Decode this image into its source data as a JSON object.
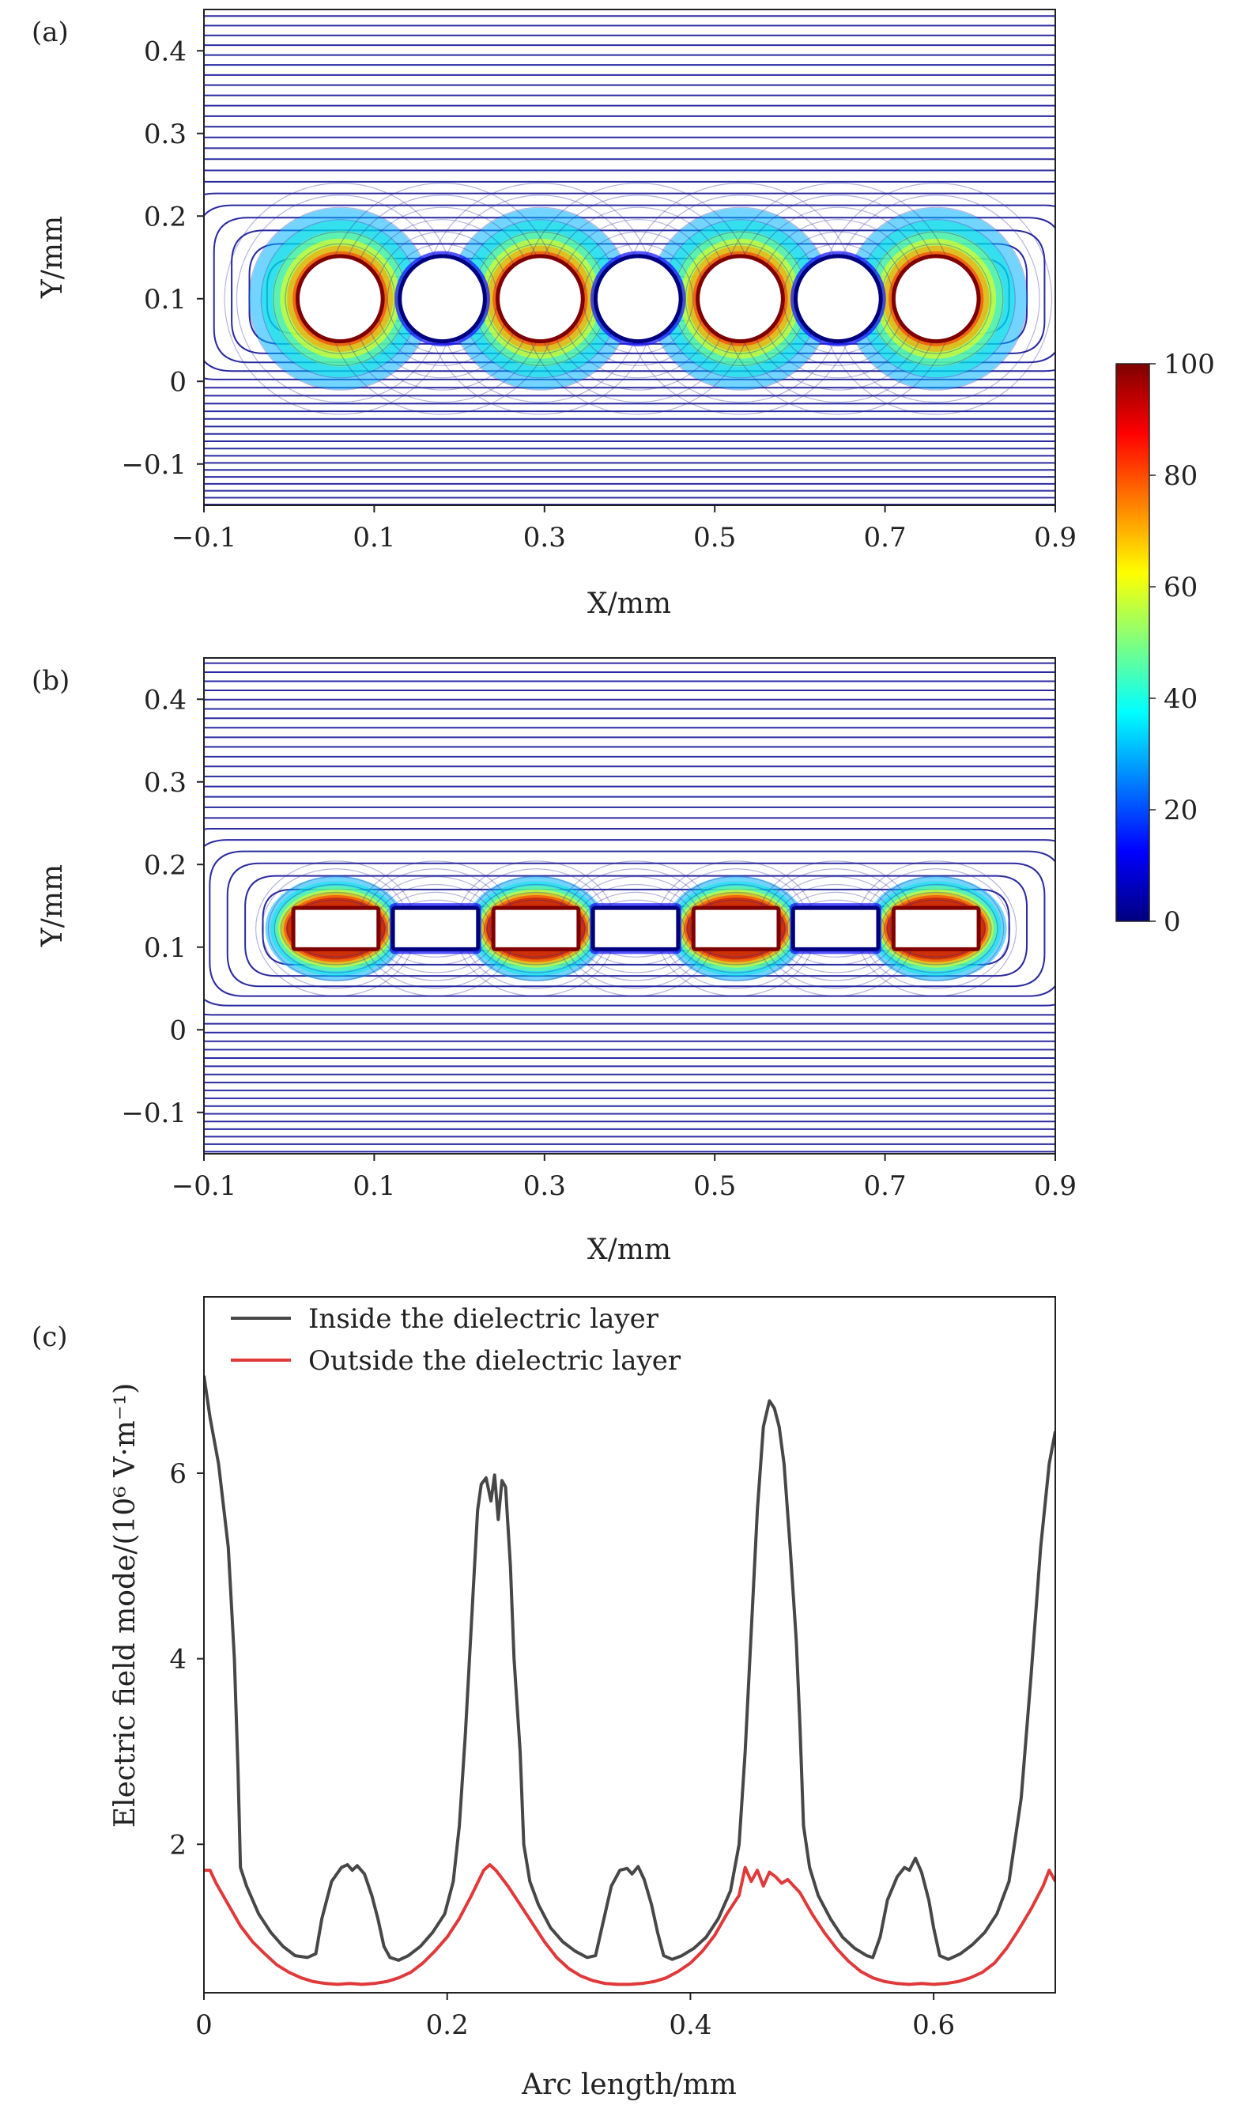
{
  "chart_data": [
    {
      "panel": "(a)",
      "type": "contour",
      "title": "",
      "xlabel": "X/mm",
      "ylabel": "Y/mm",
      "xlim": [
        -0.1,
        0.9
      ],
      "ylim": [
        -0.15,
        0.45
      ],
      "xticks": [
        "−0.1",
        "0.1",
        "0.3",
        "0.5",
        "0.7",
        "0.9"
      ],
      "yticks": [
        "−0.1",
        "0",
        "0.1",
        "0.2",
        "0.3",
        "0.4"
      ],
      "electrode_shape": "circle",
      "electrodes": [
        {
          "x": 0.06,
          "y": 0.1,
          "size": 0.1,
          "energized": true
        },
        {
          "x": 0.18,
          "y": 0.1,
          "size": 0.1,
          "energized": false
        },
        {
          "x": 0.295,
          "y": 0.1,
          "size": 0.1,
          "energized": true
        },
        {
          "x": 0.41,
          "y": 0.1,
          "size": 0.1,
          "energized": false
        },
        {
          "x": 0.53,
          "y": 0.1,
          "size": 0.1,
          "energized": true
        },
        {
          "x": 0.645,
          "y": 0.1,
          "size": 0.1,
          "energized": false
        },
        {
          "x": 0.76,
          "y": 0.1,
          "size": 0.1,
          "energized": true
        }
      ]
    },
    {
      "panel": "(b)",
      "type": "contour",
      "title": "",
      "xlabel": "X/mm",
      "ylabel": "Y/mm",
      "xlim": [
        -0.1,
        0.9
      ],
      "ylim": [
        -0.15,
        0.45
      ],
      "xticks": [
        "−0.1",
        "0.1",
        "0.3",
        "0.5",
        "0.7",
        "0.9"
      ],
      "yticks": [
        "−0.1",
        "0",
        "0.1",
        "0.2",
        "0.3",
        "0.4"
      ],
      "electrode_shape": "rectangle",
      "electrodes": [
        {
          "x": 0.055,
          "y": 0.1225,
          "width": 0.1,
          "height": 0.05,
          "energized": true
        },
        {
          "x": 0.172,
          "y": 0.1225,
          "width": 0.1,
          "height": 0.05,
          "energized": false
        },
        {
          "x": 0.29,
          "y": 0.1225,
          "width": 0.1,
          "height": 0.05,
          "energized": true
        },
        {
          "x": 0.407,
          "y": 0.1225,
          "width": 0.1,
          "height": 0.05,
          "energized": false
        },
        {
          "x": 0.525,
          "y": 0.1225,
          "width": 0.1,
          "height": 0.05,
          "energized": true
        },
        {
          "x": 0.642,
          "y": 0.1225,
          "width": 0.1,
          "height": 0.05,
          "energized": false
        },
        {
          "x": 0.76,
          "y": 0.1225,
          "width": 0.1,
          "height": 0.05,
          "energized": true
        }
      ]
    },
    {
      "panel": "(c)",
      "type": "line",
      "title": "",
      "xlabel": "Arc length/mm",
      "ylabel": "Electric field mode/(10⁶ V·m⁻¹)",
      "xlim": [
        0,
        0.7
      ],
      "ylim": [
        0.4,
        7.9
      ],
      "xticks": [
        0,
        0.2,
        0.4,
        0.6
      ],
      "xtick_labels": [
        "0",
        "0.2",
        "0.4",
        "0.6"
      ],
      "yticks": [
        2,
        4,
        6
      ],
      "ytick_labels": [
        "2",
        "4",
        "6"
      ],
      "legend_position": "top-left",
      "series": [
        {
          "name": "Inside the dielectric layer",
          "color": "#474747",
          "points": [
            [
              0,
              7.05
            ],
            [
              0.005,
              6.6
            ],
            [
              0.012,
              6.1
            ],
            [
              0.02,
              5.2
            ],
            [
              0.025,
              4.0
            ],
            [
              0.028,
              2.8
            ],
            [
              0.03,
              1.75
            ],
            [
              0.035,
              1.55
            ],
            [
              0.045,
              1.25
            ],
            [
              0.055,
              1.05
            ],
            [
              0.065,
              0.9
            ],
            [
              0.075,
              0.8
            ],
            [
              0.085,
              0.78
            ],
            [
              0.092,
              0.82
            ],
            [
              0.097,
              1.2
            ],
            [
              0.105,
              1.6
            ],
            [
              0.113,
              1.75
            ],
            [
              0.118,
              1.78
            ],
            [
              0.122,
              1.72
            ],
            [
              0.126,
              1.77
            ],
            [
              0.132,
              1.68
            ],
            [
              0.138,
              1.45
            ],
            [
              0.143,
              1.2
            ],
            [
              0.148,
              0.9
            ],
            [
              0.153,
              0.78
            ],
            [
              0.16,
              0.75
            ],
            [
              0.168,
              0.8
            ],
            [
              0.178,
              0.9
            ],
            [
              0.188,
              1.05
            ],
            [
              0.198,
              1.25
            ],
            [
              0.205,
              1.6
            ],
            [
              0.21,
              2.2
            ],
            [
              0.215,
              3.2
            ],
            [
              0.22,
              4.4
            ],
            [
              0.225,
              5.6
            ],
            [
              0.228,
              5.88
            ],
            [
              0.232,
              5.95
            ],
            [
              0.236,
              5.7
            ],
            [
              0.239,
              5.98
            ],
            [
              0.242,
              5.5
            ],
            [
              0.245,
              5.92
            ],
            [
              0.248,
              5.85
            ],
            [
              0.252,
              5.0
            ],
            [
              0.255,
              4.0
            ],
            [
              0.26,
              3.0
            ],
            [
              0.263,
              2.0
            ],
            [
              0.268,
              1.6
            ],
            [
              0.275,
              1.35
            ],
            [
              0.285,
              1.1
            ],
            [
              0.295,
              0.95
            ],
            [
              0.305,
              0.85
            ],
            [
              0.315,
              0.78
            ],
            [
              0.322,
              0.8
            ],
            [
              0.328,
              1.15
            ],
            [
              0.335,
              1.55
            ],
            [
              0.342,
              1.72
            ],
            [
              0.348,
              1.74
            ],
            [
              0.352,
              1.68
            ],
            [
              0.357,
              1.76
            ],
            [
              0.362,
              1.62
            ],
            [
              0.368,
              1.35
            ],
            [
              0.373,
              1.05
            ],
            [
              0.378,
              0.8
            ],
            [
              0.385,
              0.76
            ],
            [
              0.393,
              0.8
            ],
            [
              0.403,
              0.88
            ],
            [
              0.413,
              1.0
            ],
            [
              0.423,
              1.2
            ],
            [
              0.433,
              1.5
            ],
            [
              0.44,
              2.0
            ],
            [
              0.445,
              3.0
            ],
            [
              0.45,
              4.3
            ],
            [
              0.455,
              5.6
            ],
            [
              0.46,
              6.5
            ],
            [
              0.465,
              6.78
            ],
            [
              0.469,
              6.7
            ],
            [
              0.473,
              6.5
            ],
            [
              0.477,
              6.1
            ],
            [
              0.482,
              5.2
            ],
            [
              0.487,
              4.2
            ],
            [
              0.49,
              3.3
            ],
            [
              0.493,
              2.2
            ],
            [
              0.498,
              1.75
            ],
            [
              0.505,
              1.45
            ],
            [
              0.515,
              1.2
            ],
            [
              0.525,
              1.0
            ],
            [
              0.535,
              0.88
            ],
            [
              0.545,
              0.8
            ],
            [
              0.55,
              0.78
            ],
            [
              0.556,
              1.0
            ],
            [
              0.562,
              1.4
            ],
            [
              0.57,
              1.65
            ],
            [
              0.576,
              1.75
            ],
            [
              0.58,
              1.72
            ],
            [
              0.585,
              1.85
            ],
            [
              0.59,
              1.7
            ],
            [
              0.596,
              1.4
            ],
            [
              0.6,
              1.1
            ],
            [
              0.605,
              0.8
            ],
            [
              0.612,
              0.76
            ],
            [
              0.622,
              0.82
            ],
            [
              0.632,
              0.92
            ],
            [
              0.642,
              1.05
            ],
            [
              0.652,
              1.25
            ],
            [
              0.662,
              1.6
            ],
            [
              0.672,
              2.5
            ],
            [
              0.68,
              3.8
            ],
            [
              0.688,
              5.2
            ],
            [
              0.695,
              6.1
            ],
            [
              0.7,
              6.45
            ]
          ]
        },
        {
          "name": "Outside the dielectric layer",
          "color": "#e0393a",
          "points": [
            [
              0,
              1.72
            ],
            [
              0.005,
              1.72
            ],
            [
              0.01,
              1.58
            ],
            [
              0.02,
              1.35
            ],
            [
              0.03,
              1.12
            ],
            [
              0.04,
              0.95
            ],
            [
              0.05,
              0.82
            ],
            [
              0.06,
              0.7
            ],
            [
              0.07,
              0.62
            ],
            [
              0.08,
              0.56
            ],
            [
              0.09,
              0.52
            ],
            [
              0.1,
              0.5
            ],
            [
              0.11,
              0.49
            ],
            [
              0.12,
              0.5
            ],
            [
              0.13,
              0.49
            ],
            [
              0.14,
              0.5
            ],
            [
              0.15,
              0.52
            ],
            [
              0.16,
              0.56
            ],
            [
              0.17,
              0.62
            ],
            [
              0.18,
              0.72
            ],
            [
              0.19,
              0.85
            ],
            [
              0.2,
              1.0
            ],
            [
              0.21,
              1.2
            ],
            [
              0.22,
              1.45
            ],
            [
              0.23,
              1.72
            ],
            [
              0.235,
              1.78
            ],
            [
              0.24,
              1.72
            ],
            [
              0.25,
              1.55
            ],
            [
              0.26,
              1.35
            ],
            [
              0.27,
              1.15
            ],
            [
              0.28,
              0.95
            ],
            [
              0.29,
              0.78
            ],
            [
              0.3,
              0.66
            ],
            [
              0.31,
              0.58
            ],
            [
              0.32,
              0.53
            ],
            [
              0.33,
              0.5
            ],
            [
              0.34,
              0.49
            ],
            [
              0.35,
              0.49
            ],
            [
              0.36,
              0.5
            ],
            [
              0.37,
              0.52
            ],
            [
              0.38,
              0.56
            ],
            [
              0.39,
              0.63
            ],
            [
              0.4,
              0.72
            ],
            [
              0.41,
              0.85
            ],
            [
              0.42,
              1.02
            ],
            [
              0.43,
              1.25
            ],
            [
              0.44,
              1.45
            ],
            [
              0.445,
              1.75
            ],
            [
              0.45,
              1.6
            ],
            [
              0.455,
              1.72
            ],
            [
              0.46,
              1.55
            ],
            [
              0.465,
              1.7
            ],
            [
              0.47,
              1.65
            ],
            [
              0.475,
              1.58
            ],
            [
              0.48,
              1.62
            ],
            [
              0.49,
              1.48
            ],
            [
              0.5,
              1.25
            ],
            [
              0.51,
              1.05
            ],
            [
              0.52,
              0.88
            ],
            [
              0.53,
              0.74
            ],
            [
              0.54,
              0.63
            ],
            [
              0.55,
              0.56
            ],
            [
              0.56,
              0.52
            ],
            [
              0.57,
              0.5
            ],
            [
              0.58,
              0.49
            ],
            [
              0.59,
              0.5
            ],
            [
              0.6,
              0.49
            ],
            [
              0.61,
              0.5
            ],
            [
              0.62,
              0.52
            ],
            [
              0.63,
              0.56
            ],
            [
              0.64,
              0.62
            ],
            [
              0.65,
              0.72
            ],
            [
              0.66,
              0.88
            ],
            [
              0.67,
              1.08
            ],
            [
              0.68,
              1.3
            ],
            [
              0.69,
              1.55
            ],
            [
              0.695,
              1.72
            ],
            [
              0.7,
              1.6
            ]
          ]
        }
      ]
    }
  ],
  "colorbar": {
    "ticks": [
      "100",
      "80",
      "60",
      "40",
      "20",
      "0"
    ],
    "min": 0,
    "max": 100,
    "colormap": [
      "#00007f",
      "#0000ff",
      "#007fff",
      "#00ffff",
      "#7fff7f",
      "#ffff00",
      "#ff7f00",
      "#ff0000",
      "#7f0000"
    ]
  },
  "contour_color": "#2a2aa0"
}
